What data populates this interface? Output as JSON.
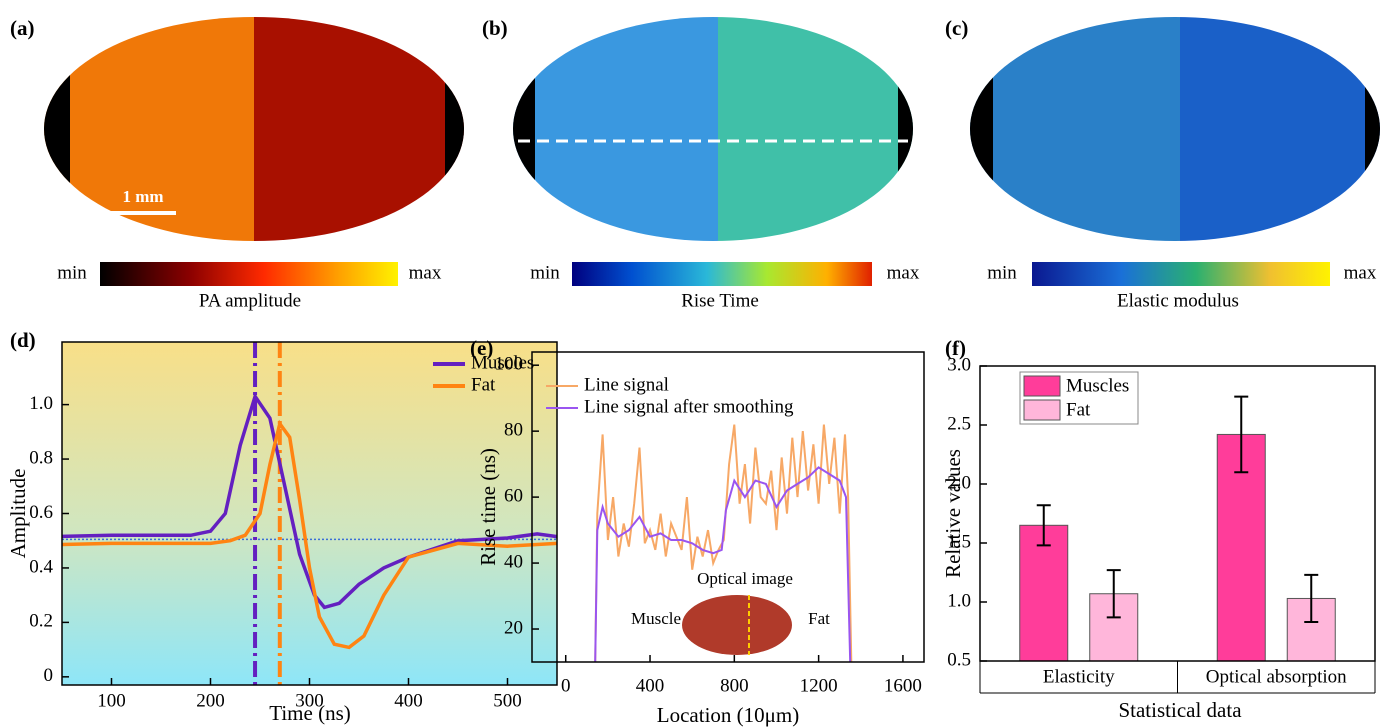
{
  "panels": [
    {
      "label": "(a)",
      "min": "min",
      "max": "max",
      "caption": "PA amplitude",
      "scale_bar": "1 mm"
    },
    {
      "label": "(b)",
      "min": "min",
      "max": "max",
      "caption": "Rise Time"
    },
    {
      "label": "(c)",
      "min": "min",
      "max": "max",
      "caption": "Elastic modulus"
    }
  ],
  "chart_data": [
    {
      "type": "line",
      "label": "(d)",
      "x_label": "Time (ns)",
      "y_label": "Amplitude",
      "xlim": [
        50,
        550
      ],
      "ylim": [
        -0.03,
        1.23
      ],
      "xticks": [
        100,
        200,
        300,
        400,
        500
      ],
      "yticks": [
        0,
        0.2,
        0.4,
        0.6,
        0.8,
        {
          "value": 1,
          "label": "1.0"
        }
      ],
      "legend": "upper right",
      "vlines": [
        245,
        270
      ],
      "hline": 0.505,
      "hline_color": "#3b6fd6",
      "series": [
        {
          "name": "Muscles",
          "color": "#6420c0",
          "x": [
            50,
            100,
            150,
            180,
            200,
            215,
            230,
            245,
            260,
            275,
            290,
            305,
            315,
            330,
            350,
            375,
            400,
            450,
            500,
            530,
            550
          ],
          "values": [
            0.516,
            0.52,
            0.52,
            0.52,
            0.535,
            0.6,
            0.85,
            1.03,
            0.95,
            0.7,
            0.45,
            0.3,
            0.255,
            0.27,
            0.34,
            0.4,
            0.44,
            0.5,
            0.51,
            0.525,
            0.515
          ]
        },
        {
          "name": "Fat",
          "color": "#ff8412",
          "x": [
            50,
            100,
            150,
            200,
            220,
            235,
            250,
            260,
            270,
            280,
            290,
            300,
            310,
            325,
            340,
            355,
            375,
            400,
            450,
            500,
            550
          ],
          "values": [
            0.486,
            0.49,
            0.49,
            0.49,
            0.5,
            0.52,
            0.6,
            0.78,
            0.93,
            0.88,
            0.65,
            0.4,
            0.22,
            0.12,
            0.108,
            0.15,
            0.3,
            0.44,
            0.49,
            0.48,
            0.49
          ]
        }
      ]
    },
    {
      "type": "line",
      "label": "(e)",
      "x_label": "Location (10μm)",
      "y_label": "Rise time (ns)",
      "xlim": [
        -160,
        1700
      ],
      "ylim": [
        10,
        104
      ],
      "xticks": [
        0,
        400,
        800,
        1200,
        1600
      ],
      "yticks": [
        20,
        40,
        60,
        80,
        100
      ],
      "legend": "upper left",
      "inset": {
        "title": "Optical image",
        "left": "Muscle",
        "right": "Fat"
      },
      "series": [
        {
          "name": "Line signal",
          "color": "#f7a866",
          "x": [
            140,
            150,
            175,
            200,
            225,
            250,
            275,
            300,
            325,
            350,
            375,
            400,
            425,
            450,
            475,
            500,
            525,
            550,
            575,
            600,
            625,
            650,
            675,
            700,
            725,
            750,
            775,
            800,
            825,
            850,
            875,
            900,
            925,
            950,
            975,
            1000,
            1025,
            1050,
            1075,
            1100,
            1125,
            1150,
            1175,
            1200,
            1225,
            1250,
            1275,
            1300,
            1325,
            1340,
            1355
          ],
          "values": [
            10,
            55,
            79,
            47,
            60,
            42,
            52,
            45,
            58,
            75,
            46,
            50,
            44,
            55,
            42,
            52,
            48,
            44,
            60,
            38,
            48,
            42,
            50,
            40,
            44,
            47,
            70,
            82,
            58,
            70,
            52,
            75,
            60,
            58,
            68,
            50,
            72,
            55,
            78,
            60,
            80,
            62,
            76,
            58,
            82,
            64,
            78,
            55,
            79,
            60,
            10
          ]
        },
        {
          "name": "Line signal after smoothing",
          "color": "#9a55f0",
          "x": [
            140,
            150,
            175,
            200,
            250,
            300,
            350,
            400,
            450,
            500,
            550,
            600,
            650,
            700,
            740,
            760,
            800,
            850,
            900,
            950,
            1000,
            1050,
            1100,
            1150,
            1200,
            1250,
            1300,
            1330,
            1350
          ],
          "values": [
            10,
            50,
            57,
            52,
            48,
            50,
            54,
            48,
            49,
            47,
            47,
            46,
            44,
            43,
            44,
            56,
            65,
            60,
            65,
            64,
            57,
            62,
            64,
            66,
            69,
            67,
            65,
            60,
            10
          ]
        }
      ]
    },
    {
      "type": "bar",
      "label": "(f)",
      "x_label": "Statistical data",
      "y_label": "Relative values",
      "ylim": [
        0.5,
        3.0
      ],
      "yticks": [
        0.5,
        {
          "value": 1,
          "label": "1.0"
        },
        1.5,
        {
          "value": 2,
          "label": "2.0"
        },
        2.5,
        {
          "value": 3,
          "label": "3.0"
        }
      ],
      "legend": "upper left",
      "categories": [
        "Elasticity",
        "Optical absorption"
      ],
      "series": [
        {
          "name": "Muscles",
          "color": "#ff3d9a",
          "values": [
            1.65,
            2.42
          ],
          "errors": [
            0.17,
            0.32
          ]
        },
        {
          "name": "Fat",
          "color": "#ffb6da",
          "values": [
            1.07,
            1.03
          ],
          "errors": [
            0.2,
            0.2
          ]
        }
      ]
    }
  ]
}
